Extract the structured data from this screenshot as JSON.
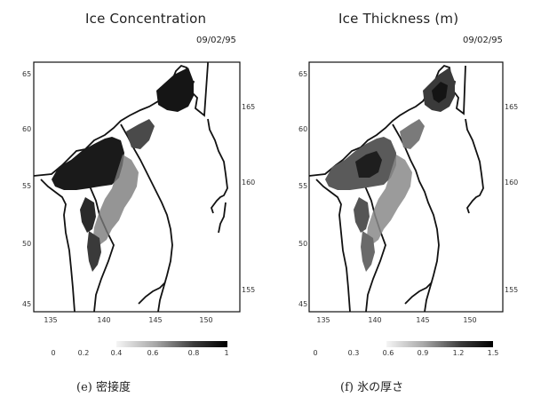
{
  "panels": [
    {
      "title": "Ice Concentration",
      "date": "09/02/95",
      "caption": "(e) 密接度",
      "lat_ticks": [
        "65",
        "60",
        "55",
        "50",
        "45"
      ],
      "lon_ticks": [
        "135",
        "140",
        "145",
        "150"
      ],
      "right_ticks": [
        "165",
        "160",
        "155"
      ],
      "colorbar_ticks": [
        "0",
        "0.2",
        "0.4",
        "0.6",
        "0.8",
        "1"
      ]
    },
    {
      "title": "Ice Thickness (m)",
      "date": "09/02/95",
      "caption": "(f) 氷の厚さ",
      "lat_ticks": [
        "65",
        "60",
        "55",
        "50",
        "45"
      ],
      "lon_ticks": [
        "135",
        "140",
        "145",
        "150"
      ],
      "right_ticks": [
        "165",
        "160",
        "155"
      ],
      "colorbar_ticks": [
        "0",
        "0.3",
        "0.6",
        "0.9",
        "1.2",
        "1.5"
      ]
    }
  ]
}
